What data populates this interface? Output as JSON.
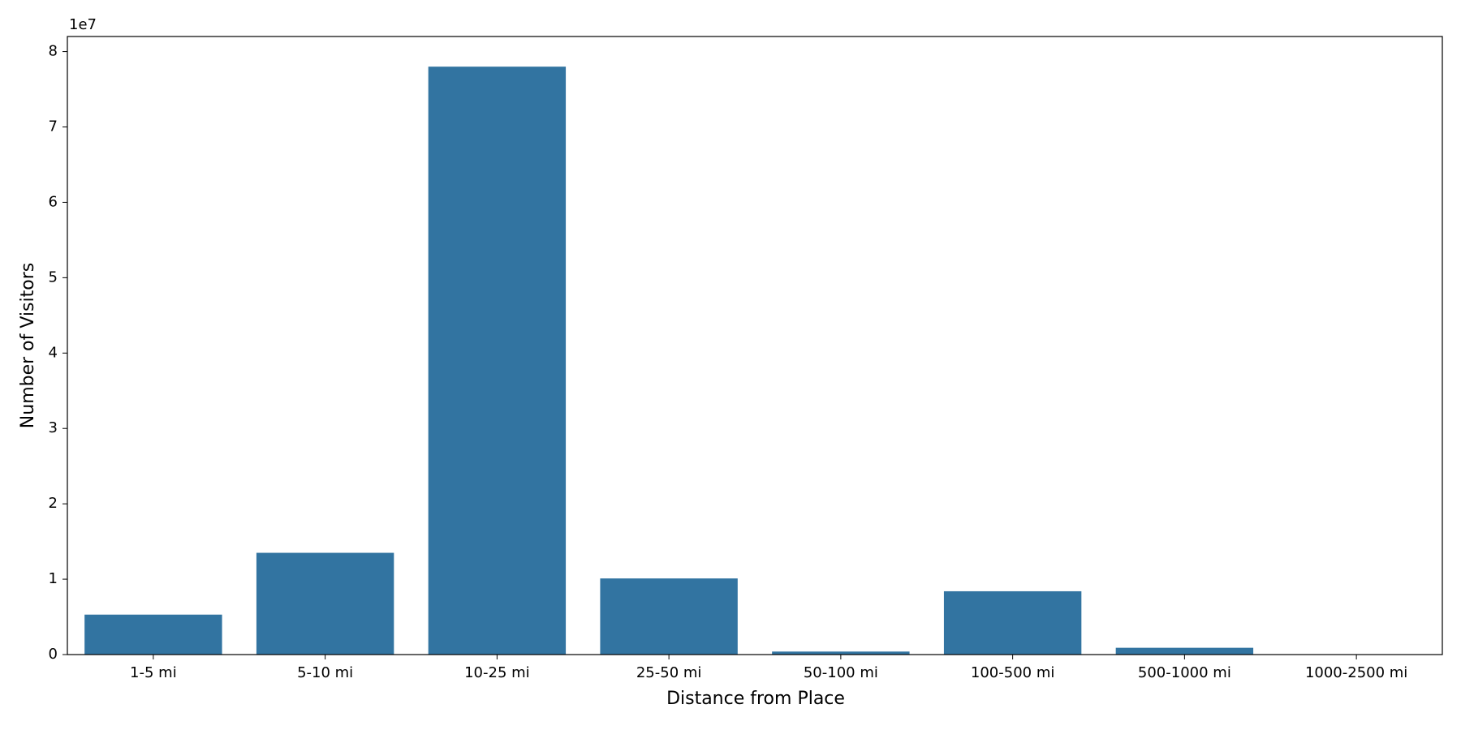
{
  "chart_data": {
    "type": "bar",
    "x_label": "Distance from Place",
    "y_label": "Number of Visitors",
    "y_offset_label": "1e7",
    "categories": [
      "1-5 mi",
      "5-10 mi",
      "10-25 mi",
      "25-50 mi",
      "50-100 mi",
      "100-500 mi",
      "500-1000 mi",
      "1000-2500 mi"
    ],
    "values": [
      0.53,
      1.35,
      7.8,
      1.01,
      0.04,
      0.84,
      0.09,
      0
    ],
    "color": "#3274a1",
    "ylim": [
      0,
      8.2
    ],
    "yticks": [
      0,
      1,
      2,
      3,
      4,
      5,
      6,
      7,
      8
    ],
    "grid": false
  }
}
